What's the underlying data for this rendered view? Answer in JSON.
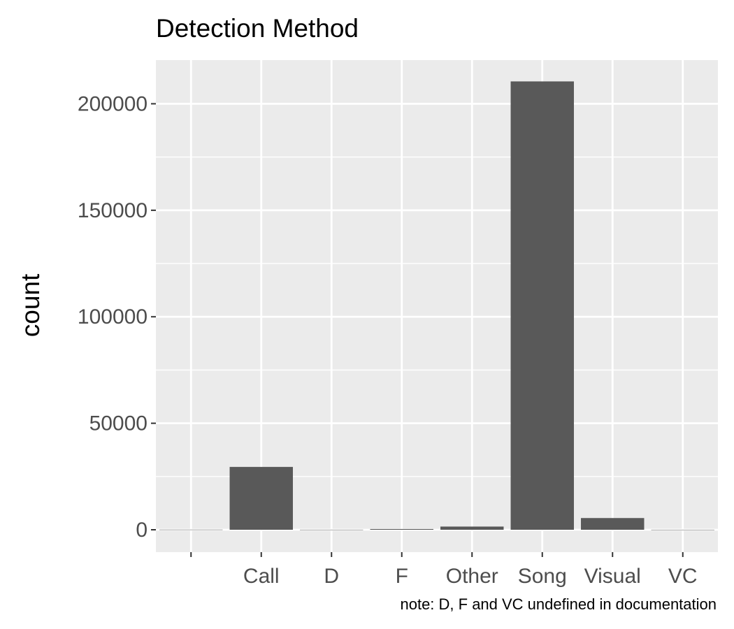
{
  "chart_data": {
    "type": "bar",
    "title": "Detection Method",
    "xlabel": "",
    "ylabel": "count",
    "caption": "note: D, F and VC undefined in documentation",
    "categories": [
      "",
      "Call",
      "D",
      "F",
      "Other",
      "Song",
      "Visual",
      "VC"
    ],
    "values": [
      60,
      29500,
      30,
      350,
      1500,
      210500,
      5500,
      20
    ],
    "yticks": [
      0,
      50000,
      100000,
      150000,
      200000
    ],
    "ylim": [
      -10500,
      220500
    ],
    "grid": true,
    "legend": "none",
    "colors": {
      "bar": "#595959",
      "panel": "#ebebeb",
      "grid": "#ffffff",
      "tick_text": "#4d4d4d",
      "axis_ticks": "#333333"
    }
  }
}
